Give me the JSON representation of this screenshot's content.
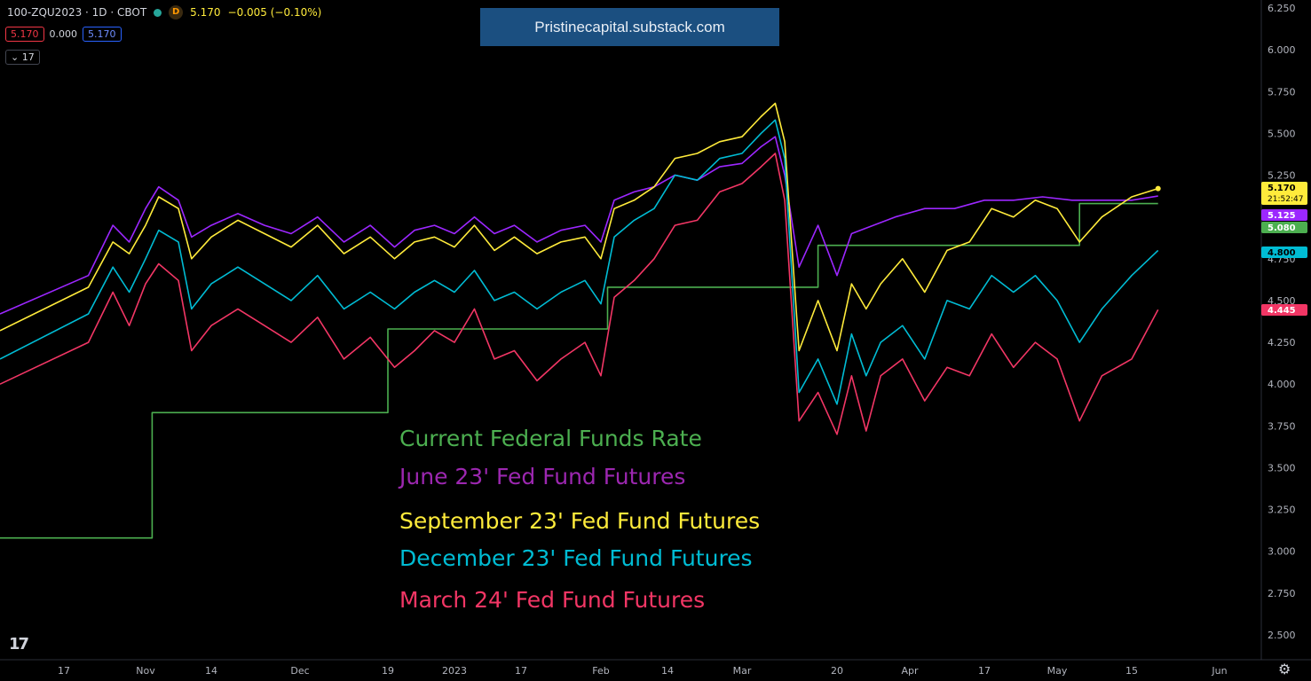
{
  "header": {
    "symbol": "100-ZQU2023 · 1D · CBOT",
    "interval_badge": "D",
    "last": "5.170",
    "change": "−0.005 (−0.10%)",
    "bid": "5.170",
    "spread": "0.000",
    "ask": "5.170",
    "indicator_count": "17"
  },
  "banner": "Pristinecapital.substack.com",
  "legend": [
    {
      "label": "Current Federal Funds Rate",
      "color": "#4caf50"
    },
    {
      "label": "June 23' Fed Fund Futures",
      "color": "#9c27b0"
    },
    {
      "label": "September 23' Fed Fund Futures",
      "color": "#ffeb3b"
    },
    {
      "label": "December 23' Fed Fund Futures",
      "color": "#00bcd4"
    },
    {
      "label": "March 24' Fed Fund Futures",
      "color": "#f23665"
    }
  ],
  "price_tags": [
    {
      "value": "5.170",
      "sub": "21:52:47",
      "color": "#ffeb3b",
      "text": "#000000"
    },
    {
      "value": "5.125",
      "color": "#9c27ff",
      "text": "#ffffff"
    },
    {
      "value": "5.080",
      "color": "#4caf50",
      "text": "#ffffff"
    },
    {
      "value": "4.800",
      "color": "#00bcd4",
      "text": "#000000"
    },
    {
      "value": "4.445",
      "color": "#f23665",
      "text": "#ffffff"
    }
  ],
  "tv_logo": "17",
  "chart_data": {
    "type": "line",
    "ylim": [
      2.35,
      6.3
    ],
    "yticks": [
      "2.500",
      "2.750",
      "3.000",
      "3.250",
      "3.500",
      "3.750",
      "4.000",
      "4.250",
      "4.500",
      "4.750",
      "5.000",
      "5.250",
      "5.500",
      "5.750",
      "6.000",
      "6.250"
    ],
    "xticks": [
      {
        "label": "17",
        "x": 0
      },
      {
        "label": "Nov",
        "x": 1
      },
      {
        "label": "14",
        "x": 2
      },
      {
        "label": "Dec",
        "x": 3
      },
      {
        "label": "19",
        "x": 4
      },
      {
        "label": "2023",
        "x": 5
      },
      {
        "label": "17",
        "x": 6
      },
      {
        "label": "Feb",
        "x": 7
      },
      {
        "label": "14",
        "x": 8
      },
      {
        "label": "Mar",
        "x": 9
      },
      {
        "label": "20",
        "x": 10
      },
      {
        "label": "Apr",
        "x": 11
      },
      {
        "label": "17",
        "x": 12
      },
      {
        "label": "May",
        "x": 13
      },
      {
        "label": "15",
        "x": 14
      },
      {
        "label": "Jun",
        "x": 15
      }
    ],
    "series": [
      {
        "name": "Current Federal Funds Rate",
        "color": "#4caf50",
        "step": true,
        "points": [
          [
            0,
            3.08
          ],
          [
            1.1,
            3.08
          ],
          [
            1.1,
            3.83
          ],
          [
            4.0,
            3.83
          ],
          [
            4.0,
            4.33
          ],
          [
            7.1,
            4.33
          ],
          [
            7.1,
            4.58
          ],
          [
            9.8,
            4.58
          ],
          [
            9.8,
            4.83
          ],
          [
            13.3,
            4.83
          ],
          [
            13.3,
            5.08
          ],
          [
            14.3,
            5.08
          ]
        ]
      },
      {
        "name": "June 23' Fed Fund Futures",
        "color": "#9c27ff",
        "points": [
          [
            0,
            4.42
          ],
          [
            0.3,
            4.65
          ],
          [
            0.6,
            4.95
          ],
          [
            0.8,
            4.85
          ],
          [
            1.0,
            5.05
          ],
          [
            1.2,
            5.18
          ],
          [
            1.5,
            5.1
          ],
          [
            1.7,
            4.88
          ],
          [
            2.0,
            4.95
          ],
          [
            2.3,
            5.02
          ],
          [
            2.6,
            4.95
          ],
          [
            2.9,
            4.9
          ],
          [
            3.2,
            5.0
          ],
          [
            3.5,
            4.85
          ],
          [
            3.8,
            4.95
          ],
          [
            4.1,
            4.82
          ],
          [
            4.4,
            4.92
          ],
          [
            4.7,
            4.95
          ],
          [
            5.0,
            4.9
          ],
          [
            5.3,
            5.0
          ],
          [
            5.6,
            4.9
          ],
          [
            5.9,
            4.95
          ],
          [
            6.2,
            4.85
          ],
          [
            6.5,
            4.92
          ],
          [
            6.8,
            4.95
          ],
          [
            7.0,
            4.85
          ],
          [
            7.2,
            5.1
          ],
          [
            7.5,
            5.15
          ],
          [
            7.8,
            5.18
          ],
          [
            8.1,
            5.25
          ],
          [
            8.4,
            5.22
          ],
          [
            8.7,
            5.3
          ],
          [
            9.0,
            5.32
          ],
          [
            9.2,
            5.42
          ],
          [
            9.35,
            5.48
          ],
          [
            9.45,
            5.25
          ],
          [
            9.6,
            4.7
          ],
          [
            9.8,
            4.95
          ],
          [
            10.0,
            4.65
          ],
          [
            10.2,
            4.9
          ],
          [
            10.5,
            4.95
          ],
          [
            10.8,
            5.0
          ],
          [
            11.2,
            5.05
          ],
          [
            11.6,
            5.05
          ],
          [
            12.0,
            5.1
          ],
          [
            12.4,
            5.1
          ],
          [
            12.8,
            5.12
          ],
          [
            13.2,
            5.1
          ],
          [
            13.6,
            5.1
          ],
          [
            14.0,
            5.1
          ],
          [
            14.3,
            5.125
          ]
        ]
      },
      {
        "name": "September 23' Fed Fund Futures",
        "color": "#ffeb3b",
        "points": [
          [
            0,
            4.32
          ],
          [
            0.3,
            4.58
          ],
          [
            0.6,
            4.85
          ],
          [
            0.8,
            4.78
          ],
          [
            1.0,
            4.95
          ],
          [
            1.2,
            5.12
          ],
          [
            1.5,
            5.05
          ],
          [
            1.7,
            4.75
          ],
          [
            2.0,
            4.88
          ],
          [
            2.3,
            4.98
          ],
          [
            2.6,
            4.9
          ],
          [
            2.9,
            4.82
          ],
          [
            3.2,
            4.95
          ],
          [
            3.5,
            4.78
          ],
          [
            3.8,
            4.88
          ],
          [
            4.1,
            4.75
          ],
          [
            4.4,
            4.85
          ],
          [
            4.7,
            4.88
          ],
          [
            5.0,
            4.82
          ],
          [
            5.3,
            4.95
          ],
          [
            5.6,
            4.8
          ],
          [
            5.9,
            4.88
          ],
          [
            6.2,
            4.78
          ],
          [
            6.5,
            4.85
          ],
          [
            6.8,
            4.88
          ],
          [
            7.0,
            4.75
          ],
          [
            7.2,
            5.05
          ],
          [
            7.5,
            5.1
          ],
          [
            7.8,
            5.18
          ],
          [
            8.1,
            5.35
          ],
          [
            8.4,
            5.38
          ],
          [
            8.7,
            5.45
          ],
          [
            9.0,
            5.48
          ],
          [
            9.2,
            5.6
          ],
          [
            9.35,
            5.68
          ],
          [
            9.45,
            5.45
          ],
          [
            9.6,
            4.2
          ],
          [
            9.8,
            4.5
          ],
          [
            10.0,
            4.2
          ],
          [
            10.2,
            4.6
          ],
          [
            10.4,
            4.45
          ],
          [
            10.6,
            4.6
          ],
          [
            10.9,
            4.75
          ],
          [
            11.2,
            4.55
          ],
          [
            11.5,
            4.8
          ],
          [
            11.8,
            4.85
          ],
          [
            12.1,
            5.05
          ],
          [
            12.4,
            5.0
          ],
          [
            12.7,
            5.1
          ],
          [
            13.0,
            5.05
          ],
          [
            13.3,
            4.85
          ],
          [
            13.6,
            5.0
          ],
          [
            14.0,
            5.12
          ],
          [
            14.3,
            5.17
          ]
        ]
      },
      {
        "name": "December 23' Fed Fund Futures",
        "color": "#00bcd4",
        "points": [
          [
            0,
            4.15
          ],
          [
            0.3,
            4.42
          ],
          [
            0.6,
            4.7
          ],
          [
            0.8,
            4.55
          ],
          [
            1.0,
            4.75
          ],
          [
            1.2,
            4.92
          ],
          [
            1.5,
            4.85
          ],
          [
            1.7,
            4.45
          ],
          [
            2.0,
            4.6
          ],
          [
            2.3,
            4.7
          ],
          [
            2.6,
            4.6
          ],
          [
            2.9,
            4.5
          ],
          [
            3.2,
            4.65
          ],
          [
            3.5,
            4.45
          ],
          [
            3.8,
            4.55
          ],
          [
            4.1,
            4.45
          ],
          [
            4.4,
            4.55
          ],
          [
            4.7,
            4.62
          ],
          [
            5.0,
            4.55
          ],
          [
            5.3,
            4.68
          ],
          [
            5.6,
            4.5
          ],
          [
            5.9,
            4.55
          ],
          [
            6.2,
            4.45
          ],
          [
            6.5,
            4.55
          ],
          [
            6.8,
            4.62
          ],
          [
            7.0,
            4.48
          ],
          [
            7.2,
            4.88
          ],
          [
            7.5,
            4.98
          ],
          [
            7.8,
            5.05
          ],
          [
            8.1,
            5.25
          ],
          [
            8.4,
            5.22
          ],
          [
            8.7,
            5.35
          ],
          [
            9.0,
            5.38
          ],
          [
            9.2,
            5.5
          ],
          [
            9.35,
            5.58
          ],
          [
            9.45,
            5.35
          ],
          [
            9.6,
            3.95
          ],
          [
            9.8,
            4.15
          ],
          [
            10.0,
            3.88
          ],
          [
            10.2,
            4.3
          ],
          [
            10.4,
            4.05
          ],
          [
            10.6,
            4.25
          ],
          [
            10.9,
            4.35
          ],
          [
            11.2,
            4.15
          ],
          [
            11.5,
            4.5
          ],
          [
            11.8,
            4.45
          ],
          [
            12.1,
            4.65
          ],
          [
            12.4,
            4.55
          ],
          [
            12.7,
            4.65
          ],
          [
            13.0,
            4.5
          ],
          [
            13.3,
            4.25
          ],
          [
            13.6,
            4.45
          ],
          [
            14.0,
            4.65
          ],
          [
            14.3,
            4.8
          ]
        ]
      },
      {
        "name": "March 24' Fed Fund Futures",
        "color": "#f23665",
        "points": [
          [
            0,
            4.0
          ],
          [
            0.3,
            4.25
          ],
          [
            0.6,
            4.55
          ],
          [
            0.8,
            4.35
          ],
          [
            1.0,
            4.6
          ],
          [
            1.2,
            4.72
          ],
          [
            1.5,
            4.62
          ],
          [
            1.7,
            4.2
          ],
          [
            2.0,
            4.35
          ],
          [
            2.3,
            4.45
          ],
          [
            2.6,
            4.35
          ],
          [
            2.9,
            4.25
          ],
          [
            3.2,
            4.4
          ],
          [
            3.5,
            4.15
          ],
          [
            3.8,
            4.28
          ],
          [
            4.1,
            4.1
          ],
          [
            4.4,
            4.2
          ],
          [
            4.7,
            4.32
          ],
          [
            5.0,
            4.25
          ],
          [
            5.3,
            4.45
          ],
          [
            5.6,
            4.15
          ],
          [
            5.9,
            4.2
          ],
          [
            6.2,
            4.02
          ],
          [
            6.5,
            4.15
          ],
          [
            6.8,
            4.25
          ],
          [
            7.0,
            4.05
          ],
          [
            7.2,
            4.52
          ],
          [
            7.5,
            4.62
          ],
          [
            7.8,
            4.75
          ],
          [
            8.1,
            4.95
          ],
          [
            8.4,
            4.98
          ],
          [
            8.7,
            5.15
          ],
          [
            9.0,
            5.2
          ],
          [
            9.2,
            5.3
          ],
          [
            9.35,
            5.38
          ],
          [
            9.45,
            5.1
          ],
          [
            9.6,
            3.78
          ],
          [
            9.8,
            3.95
          ],
          [
            10.0,
            3.7
          ],
          [
            10.2,
            4.05
          ],
          [
            10.4,
            3.72
          ],
          [
            10.6,
            4.05
          ],
          [
            10.9,
            4.15
          ],
          [
            11.2,
            3.9
          ],
          [
            11.5,
            4.1
          ],
          [
            11.8,
            4.05
          ],
          [
            12.1,
            4.3
          ],
          [
            12.4,
            4.1
          ],
          [
            12.7,
            4.25
          ],
          [
            13.0,
            4.15
          ],
          [
            13.3,
            3.78
          ],
          [
            13.6,
            4.05
          ],
          [
            14.0,
            4.15
          ],
          [
            14.3,
            4.445
          ]
        ]
      }
    ]
  }
}
